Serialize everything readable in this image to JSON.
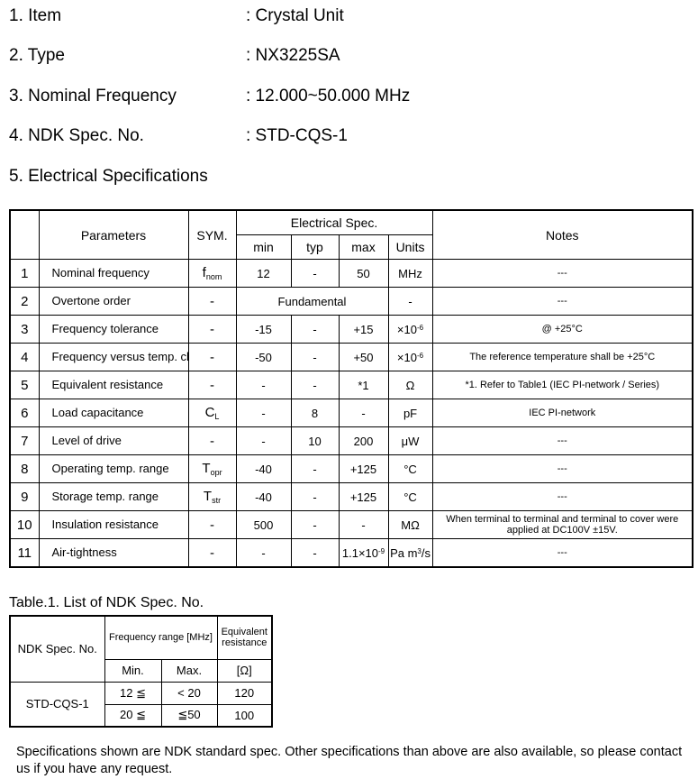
{
  "items": [
    {
      "label": "1.  Item",
      "value": ": Crystal Unit"
    },
    {
      "label": "2.  Type",
      "value": ": NX3225SA"
    },
    {
      "label": "3.  Nominal Frequency",
      "value": ": 12.000~50.000 MHz"
    },
    {
      "label": "4.  NDK Spec. No.",
      "value": ": STD-CQS-1"
    },
    {
      "label": "5.  Electrical Specifications",
      "value": ""
    }
  ],
  "spec_table": {
    "headers": {
      "parameters": "Parameters",
      "sym": "SYM.",
      "electrical": "Electrical  Spec.",
      "min": "min",
      "typ": "typ",
      "max": "max",
      "units": "Units",
      "notes": "Notes"
    },
    "rows": [
      {
        "no": "1",
        "param": "Nominal frequency",
        "sym": "f",
        "sym_sub": "nom",
        "min": "12",
        "typ": "-",
        "max": "50",
        "unit": "MHz",
        "unit_sup": "",
        "unit_tail": "",
        "notes": "---"
      },
      {
        "no": "2",
        "param": "Overtone order",
        "sym": "-",
        "sym_sub": "",
        "merged": "Fundamental",
        "unit": "-",
        "unit_sup": "",
        "unit_tail": "",
        "notes": "---"
      },
      {
        "no": "3",
        "param": "Frequency tolerance",
        "sym": "-",
        "sym_sub": "",
        "min": "-15",
        "typ": "-",
        "max": "+15",
        "unit": "×10",
        "unit_sup": "-6",
        "unit_tail": "",
        "notes": "@ +25°C"
      },
      {
        "no": "4",
        "param": "Frequency versus temp. characteristics",
        "sym": "-",
        "sym_sub": "",
        "min": "-50",
        "typ": "-",
        "max": "+50",
        "unit": "×10",
        "unit_sup": "-6",
        "unit_tail": "",
        "notes": "The reference temperature shall be +25°C"
      },
      {
        "no": "5",
        "param": "Equivalent resistance",
        "sym": "-",
        "sym_sub": "",
        "min": "-",
        "typ": "-",
        "max": "*1",
        "unit": "Ω",
        "unit_sup": "",
        "unit_tail": "",
        "notes": "*1. Refer to Table1 (IEC PI-network / Series)"
      },
      {
        "no": "6",
        "param": "Load capacitance",
        "sym": "C",
        "sym_sub": "L",
        "min": "-",
        "typ": "8",
        "max": "-",
        "unit": "pF",
        "unit_sup": "",
        "unit_tail": "",
        "notes": "IEC PI-network"
      },
      {
        "no": "7",
        "param": "Level of drive",
        "sym": "-",
        "sym_sub": "",
        "min": "-",
        "typ": "10",
        "max": "200",
        "unit": "μW",
        "unit_sup": "",
        "unit_tail": "",
        "notes": "---"
      },
      {
        "no": "8",
        "param": "Operating temp. range",
        "sym": "T",
        "sym_sub": "opr",
        "min": "-40",
        "typ": "-",
        "max": "+125",
        "unit": "°C",
        "unit_sup": "",
        "unit_tail": "",
        "notes": "---"
      },
      {
        "no": "9",
        "param": "Storage temp. range",
        "sym": "T",
        "sym_sub": "str",
        "min": "-40",
        "typ": "-",
        "max": "+125",
        "unit": "°C",
        "unit_sup": "",
        "unit_tail": "",
        "notes": "---"
      },
      {
        "no": "10",
        "param": "Insulation resistance",
        "sym": "-",
        "sym_sub": "",
        "min": "500",
        "typ": "-",
        "max": "-",
        "unit": "MΩ",
        "unit_sup": "",
        "unit_tail": "",
        "notes": "When terminal to terminal and terminal to cover were applied at DC100V ±15V."
      },
      {
        "no": "11",
        "param": "Air-tightness",
        "sym": "-",
        "sym_sub": "",
        "min": "-",
        "typ": "-",
        "max": "1.1×10",
        "max_sup": "-9",
        "unit": "Pa m",
        "unit_sup": "3",
        "unit_tail": "/s",
        "notes": "---"
      }
    ]
  },
  "table1": {
    "caption": "Table.1. List of NDK Spec. No.",
    "headers": {
      "spec_no": "NDK Spec. No.",
      "freq_range": "Frequency range [MHz]",
      "eq_res": "Equivalent resistance",
      "min": "Min.",
      "max": "Max.",
      "unit": "[Ω]"
    },
    "spec_no": "STD-CQS-1",
    "rows": [
      {
        "min": "12 ≦",
        "max": "< 20",
        "res": "120"
      },
      {
        "min": "20 ≦",
        "max": "≦50",
        "res": "100"
      }
    ]
  },
  "footer": "Specifications shown are NDK standard spec. Other specifications than above are also available, so please contact us if you have any request."
}
